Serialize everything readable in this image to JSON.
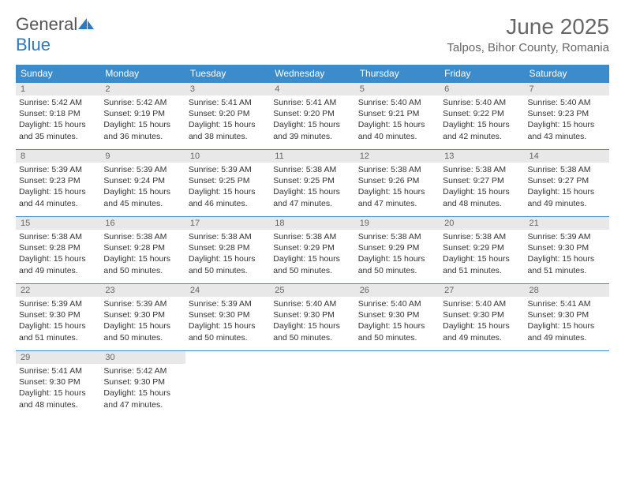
{
  "logo": {
    "text1": "General",
    "text2": "Blue",
    "color1": "#555555",
    "color2": "#2b79c2",
    "icon_color": "#2b79c2"
  },
  "title": {
    "month_year": "June 2025",
    "location": "Talpos, Bihor County, Romania",
    "title_fontsize": 28,
    "location_fontsize": 15,
    "color": "#666666"
  },
  "colors": {
    "header_bg": "#3c8ccc",
    "header_text": "#ffffff",
    "daynum_bg": "#e8e8e8",
    "daynum_text": "#666666",
    "border": "#3c8ccc",
    "body_text": "#333333",
    "page_bg": "#ffffff"
  },
  "weekdays": [
    "Sunday",
    "Monday",
    "Tuesday",
    "Wednesday",
    "Thursday",
    "Friday",
    "Saturday"
  ],
  "days": [
    {
      "n": "1",
      "sunrise": "Sunrise: 5:42 AM",
      "sunset": "Sunset: 9:18 PM",
      "daylight": "Daylight: 15 hours and 35 minutes."
    },
    {
      "n": "2",
      "sunrise": "Sunrise: 5:42 AM",
      "sunset": "Sunset: 9:19 PM",
      "daylight": "Daylight: 15 hours and 36 minutes."
    },
    {
      "n": "3",
      "sunrise": "Sunrise: 5:41 AM",
      "sunset": "Sunset: 9:20 PM",
      "daylight": "Daylight: 15 hours and 38 minutes."
    },
    {
      "n": "4",
      "sunrise": "Sunrise: 5:41 AM",
      "sunset": "Sunset: 9:20 PM",
      "daylight": "Daylight: 15 hours and 39 minutes."
    },
    {
      "n": "5",
      "sunrise": "Sunrise: 5:40 AM",
      "sunset": "Sunset: 9:21 PM",
      "daylight": "Daylight: 15 hours and 40 minutes."
    },
    {
      "n": "6",
      "sunrise": "Sunrise: 5:40 AM",
      "sunset": "Sunset: 9:22 PM",
      "daylight": "Daylight: 15 hours and 42 minutes."
    },
    {
      "n": "7",
      "sunrise": "Sunrise: 5:40 AM",
      "sunset": "Sunset: 9:23 PM",
      "daylight": "Daylight: 15 hours and 43 minutes."
    },
    {
      "n": "8",
      "sunrise": "Sunrise: 5:39 AM",
      "sunset": "Sunset: 9:23 PM",
      "daylight": "Daylight: 15 hours and 44 minutes."
    },
    {
      "n": "9",
      "sunrise": "Sunrise: 5:39 AM",
      "sunset": "Sunset: 9:24 PM",
      "daylight": "Daylight: 15 hours and 45 minutes."
    },
    {
      "n": "10",
      "sunrise": "Sunrise: 5:39 AM",
      "sunset": "Sunset: 9:25 PM",
      "daylight": "Daylight: 15 hours and 46 minutes."
    },
    {
      "n": "11",
      "sunrise": "Sunrise: 5:38 AM",
      "sunset": "Sunset: 9:25 PM",
      "daylight": "Daylight: 15 hours and 47 minutes."
    },
    {
      "n": "12",
      "sunrise": "Sunrise: 5:38 AM",
      "sunset": "Sunset: 9:26 PM",
      "daylight": "Daylight: 15 hours and 47 minutes."
    },
    {
      "n": "13",
      "sunrise": "Sunrise: 5:38 AM",
      "sunset": "Sunset: 9:27 PM",
      "daylight": "Daylight: 15 hours and 48 minutes."
    },
    {
      "n": "14",
      "sunrise": "Sunrise: 5:38 AM",
      "sunset": "Sunset: 9:27 PM",
      "daylight": "Daylight: 15 hours and 49 minutes."
    },
    {
      "n": "15",
      "sunrise": "Sunrise: 5:38 AM",
      "sunset": "Sunset: 9:28 PM",
      "daylight": "Daylight: 15 hours and 49 minutes."
    },
    {
      "n": "16",
      "sunrise": "Sunrise: 5:38 AM",
      "sunset": "Sunset: 9:28 PM",
      "daylight": "Daylight: 15 hours and 50 minutes."
    },
    {
      "n": "17",
      "sunrise": "Sunrise: 5:38 AM",
      "sunset": "Sunset: 9:28 PM",
      "daylight": "Daylight: 15 hours and 50 minutes."
    },
    {
      "n": "18",
      "sunrise": "Sunrise: 5:38 AM",
      "sunset": "Sunset: 9:29 PM",
      "daylight": "Daylight: 15 hours and 50 minutes."
    },
    {
      "n": "19",
      "sunrise": "Sunrise: 5:38 AM",
      "sunset": "Sunset: 9:29 PM",
      "daylight": "Daylight: 15 hours and 50 minutes."
    },
    {
      "n": "20",
      "sunrise": "Sunrise: 5:38 AM",
      "sunset": "Sunset: 9:29 PM",
      "daylight": "Daylight: 15 hours and 51 minutes."
    },
    {
      "n": "21",
      "sunrise": "Sunrise: 5:39 AM",
      "sunset": "Sunset: 9:30 PM",
      "daylight": "Daylight: 15 hours and 51 minutes."
    },
    {
      "n": "22",
      "sunrise": "Sunrise: 5:39 AM",
      "sunset": "Sunset: 9:30 PM",
      "daylight": "Daylight: 15 hours and 51 minutes."
    },
    {
      "n": "23",
      "sunrise": "Sunrise: 5:39 AM",
      "sunset": "Sunset: 9:30 PM",
      "daylight": "Daylight: 15 hours and 50 minutes."
    },
    {
      "n": "24",
      "sunrise": "Sunrise: 5:39 AM",
      "sunset": "Sunset: 9:30 PM",
      "daylight": "Daylight: 15 hours and 50 minutes."
    },
    {
      "n": "25",
      "sunrise": "Sunrise: 5:40 AM",
      "sunset": "Sunset: 9:30 PM",
      "daylight": "Daylight: 15 hours and 50 minutes."
    },
    {
      "n": "26",
      "sunrise": "Sunrise: 5:40 AM",
      "sunset": "Sunset: 9:30 PM",
      "daylight": "Daylight: 15 hours and 50 minutes."
    },
    {
      "n": "27",
      "sunrise": "Sunrise: 5:40 AM",
      "sunset": "Sunset: 9:30 PM",
      "daylight": "Daylight: 15 hours and 49 minutes."
    },
    {
      "n": "28",
      "sunrise": "Sunrise: 5:41 AM",
      "sunset": "Sunset: 9:30 PM",
      "daylight": "Daylight: 15 hours and 49 minutes."
    },
    {
      "n": "29",
      "sunrise": "Sunrise: 5:41 AM",
      "sunset": "Sunset: 9:30 PM",
      "daylight": "Daylight: 15 hours and 48 minutes."
    },
    {
      "n": "30",
      "sunrise": "Sunrise: 5:42 AM",
      "sunset": "Sunset: 9:30 PM",
      "daylight": "Daylight: 15 hours and 47 minutes."
    }
  ]
}
